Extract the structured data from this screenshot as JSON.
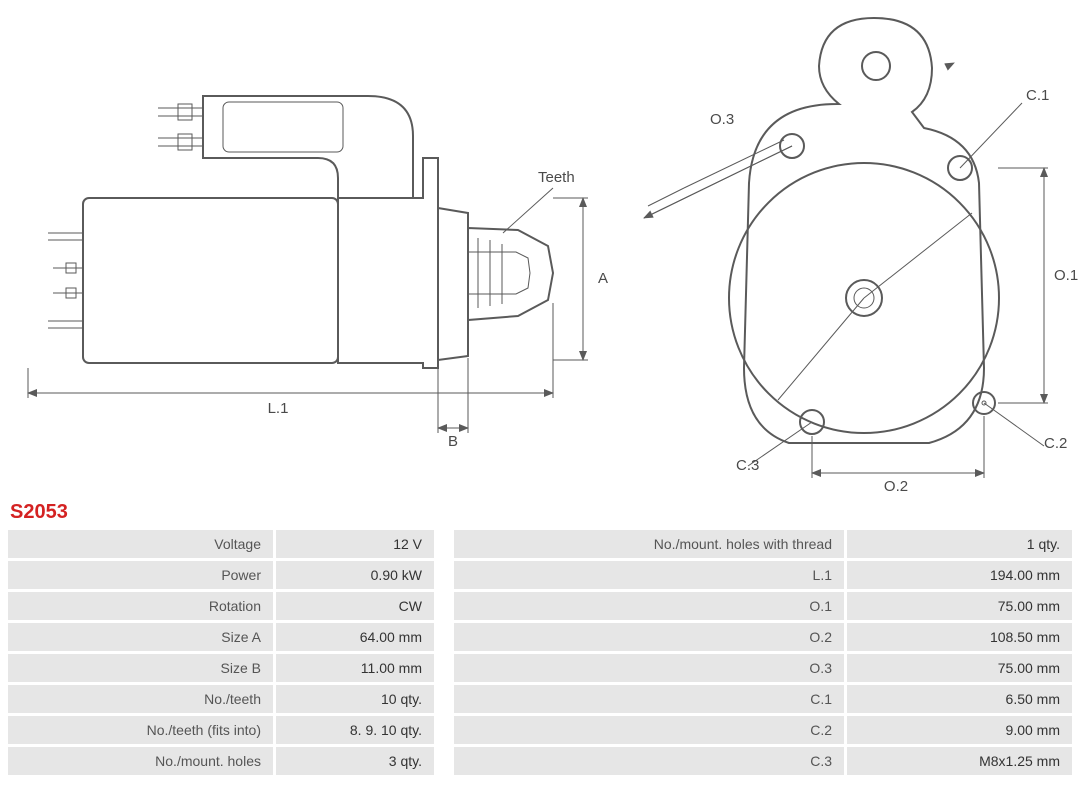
{
  "part_number": "S2053",
  "colors": {
    "title": "#d42222",
    "cell_bg": "#e6e6e6",
    "stroke": "#5a5a5a",
    "text": "#4a4a4a"
  },
  "diagram_side": {
    "labels": {
      "teeth": "Teeth",
      "A": "A",
      "B": "B",
      "L1": "L.1"
    }
  },
  "diagram_front": {
    "labels": {
      "O1": "O.1",
      "O2": "O.2",
      "O3": "O.3",
      "C1": "C.1",
      "C2": "C.2",
      "C3": "C.3"
    }
  },
  "specs_left": [
    {
      "label": "Voltage",
      "value": "12 V"
    },
    {
      "label": "Power",
      "value": "0.90 kW"
    },
    {
      "label": "Rotation",
      "value": "CW"
    },
    {
      "label": "Size A",
      "value": "64.00 mm"
    },
    {
      "label": "Size B",
      "value": "11.00 mm"
    },
    {
      "label": "No./teeth",
      "value": "10 qty."
    },
    {
      "label": "No./teeth (fits into)",
      "value": "8. 9. 10 qty."
    },
    {
      "label": "No./mount. holes",
      "value": "3 qty."
    }
  ],
  "specs_right": [
    {
      "label": "No./mount. holes with thread",
      "value": "1 qty."
    },
    {
      "label": "L.1",
      "value": "194.00 mm"
    },
    {
      "label": "O.1",
      "value": "75.00 mm"
    },
    {
      "label": "O.2",
      "value": "108.50 mm"
    },
    {
      "label": "O.3",
      "value": "75.00 mm"
    },
    {
      "label": "C.1",
      "value": "6.50 mm"
    },
    {
      "label": "C.2",
      "value": "9.00 mm"
    },
    {
      "label": "C.3",
      "value": "M8x1.25 mm"
    }
  ]
}
